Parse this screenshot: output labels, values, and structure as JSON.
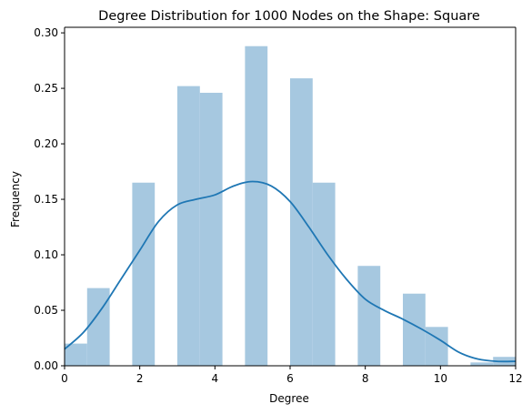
{
  "chart_data": {
    "type": "bar",
    "title": "Degree Distribution for 1000 Nodes on the Shape: Square",
    "xlabel": "Degree",
    "ylabel": "Frequency",
    "xlim": [
      0,
      12
    ],
    "ylim": [
      0,
      0.305
    ],
    "xticks": [
      0,
      2,
      4,
      6,
      8,
      10,
      12
    ],
    "yticks": [
      0.0,
      0.05,
      0.1,
      0.15,
      0.2,
      0.25,
      0.3
    ],
    "xtick_labels": [
      "0",
      "2",
      "4",
      "6",
      "8",
      "10",
      "12"
    ],
    "ytick_labels": [
      "0.00",
      "0.05",
      "0.10",
      "0.15",
      "0.20",
      "0.25",
      "0.30"
    ],
    "grid": false,
    "bins": [
      {
        "x0": 0.0,
        "x1": 0.6,
        "value": 0.02
      },
      {
        "x0": 0.6,
        "x1": 1.2,
        "value": 0.07
      },
      {
        "x0": 1.2,
        "x1": 1.8,
        "value": 0.0
      },
      {
        "x0": 1.8,
        "x1": 2.4,
        "value": 0.165
      },
      {
        "x0": 2.4,
        "x1": 3.0,
        "value": 0.0
      },
      {
        "x0": 3.0,
        "x1": 3.6,
        "value": 0.252
      },
      {
        "x0": 3.6,
        "x1": 4.2,
        "value": 0.246
      },
      {
        "x0": 4.2,
        "x1": 4.8,
        "value": 0.0
      },
      {
        "x0": 4.8,
        "x1": 5.4,
        "value": 0.288
      },
      {
        "x0": 5.4,
        "x1": 6.0,
        "value": 0.0
      },
      {
        "x0": 6.0,
        "x1": 6.6,
        "value": 0.259
      },
      {
        "x0": 6.6,
        "x1": 7.2,
        "value": 0.165
      },
      {
        "x0": 7.2,
        "x1": 7.8,
        "value": 0.0
      },
      {
        "x0": 7.8,
        "x1": 8.4,
        "value": 0.09
      },
      {
        "x0": 8.4,
        "x1": 9.0,
        "value": 0.0
      },
      {
        "x0": 9.0,
        "x1": 9.6,
        "value": 0.065
      },
      {
        "x0": 9.6,
        "x1": 10.2,
        "value": 0.035
      },
      {
        "x0": 10.2,
        "x1": 10.8,
        "value": 0.0
      },
      {
        "x0": 10.8,
        "x1": 11.4,
        "value": 0.003
      },
      {
        "x0": 11.4,
        "x1": 12.0,
        "value": 0.008
      }
    ],
    "kde": {
      "x": [
        0,
        0.5,
        1,
        1.5,
        2,
        2.5,
        3,
        3.5,
        4,
        4.5,
        5,
        5.5,
        6,
        6.5,
        7,
        7.5,
        8,
        8.5,
        9,
        9.5,
        10,
        10.5,
        11,
        11.5,
        12
      ],
      "y": [
        0.015,
        0.03,
        0.052,
        0.078,
        0.104,
        0.13,
        0.145,
        0.15,
        0.154,
        0.162,
        0.166,
        0.162,
        0.148,
        0.125,
        0.1,
        0.078,
        0.06,
        0.05,
        0.042,
        0.033,
        0.023,
        0.012,
        0.006,
        0.004,
        0.004
      ]
    },
    "colors": {
      "bar": "#a6c8e0",
      "kde": "#1f77b4",
      "axis": "#000000"
    }
  }
}
